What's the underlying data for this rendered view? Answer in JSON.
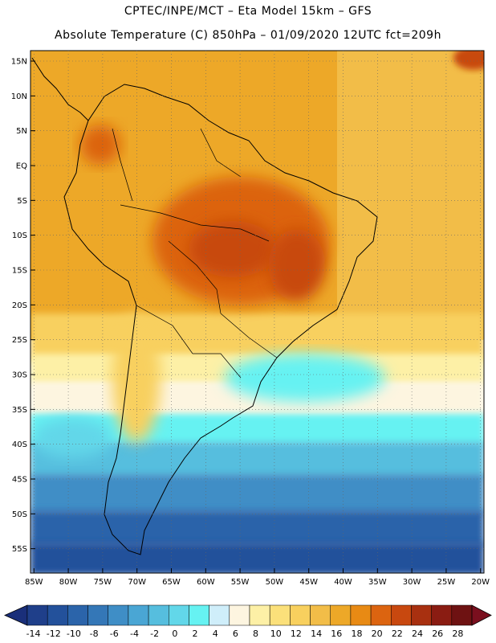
{
  "title_line1": "CPTEC/INPE/MCT –  Eta Model 15km – GFS",
  "title_line2": "Absolute Temperature (C) 850hPa – 01/09/2020 12UTC fct=209h",
  "map": {
    "lon_range": [
      -85.5,
      -19.5
    ],
    "lat_range": [
      -58.5,
      16.5
    ],
    "lat_ticks": [
      {
        "v": 15,
        "label": "15N"
      },
      {
        "v": 10,
        "label": "10N"
      },
      {
        "v": 5,
        "label": "5N"
      },
      {
        "v": 0,
        "label": "EQ"
      },
      {
        "v": -5,
        "label": "5S"
      },
      {
        "v": -10,
        "label": "10S"
      },
      {
        "v": -15,
        "label": "15S"
      },
      {
        "v": -20,
        "label": "20S"
      },
      {
        "v": -25,
        "label": "25S"
      },
      {
        "v": -30,
        "label": "30S"
      },
      {
        "v": -35,
        "label": "35S"
      },
      {
        "v": -40,
        "label": "40S"
      },
      {
        "v": -45,
        "label": "45S"
      },
      {
        "v": -50,
        "label": "50S"
      },
      {
        "v": -55,
        "label": "55S"
      }
    ],
    "lon_ticks": [
      {
        "v": -85,
        "label": "85W"
      },
      {
        "v": -80,
        "label": "80W"
      },
      {
        "v": -75,
        "label": "75W"
      },
      {
        "v": -70,
        "label": "70W"
      },
      {
        "v": -65,
        "label": "65W"
      },
      {
        "v": -60,
        "label": "60W"
      },
      {
        "v": -55,
        "label": "55W"
      },
      {
        "v": -50,
        "label": "50W"
      },
      {
        "v": -45,
        "label": "45W"
      },
      {
        "v": -40,
        "label": "40W"
      },
      {
        "v": -35,
        "label": "35W"
      },
      {
        "v": -30,
        "label": "30W"
      },
      {
        "v": -25,
        "label": "25W"
      },
      {
        "v": -20,
        "label": "20W"
      }
    ]
  },
  "colorbar": {
    "labels": [
      "-14",
      "-12",
      "-10",
      "-8",
      "-6",
      "-4",
      "-2",
      "0",
      "2",
      "4",
      "6",
      "8",
      "10",
      "12",
      "14",
      "16",
      "18",
      "20",
      "22",
      "24",
      "26",
      "28"
    ],
    "colors": [
      "#1f3f8a",
      "#23519b",
      "#2b64aa",
      "#3477b7",
      "#3f8ec6",
      "#4aa6d4",
      "#56bede",
      "#62d7e9",
      "#66f2f2",
      "#cfeefa",
      "#fdf5e0",
      "#fdf0a6",
      "#fbe07a",
      "#f8d05e",
      "#f2bd48",
      "#eda828",
      "#e88a14",
      "#dc6410",
      "#c8480f",
      "#a83010",
      "#8a1c12",
      "#6e1212"
    ]
  }
}
